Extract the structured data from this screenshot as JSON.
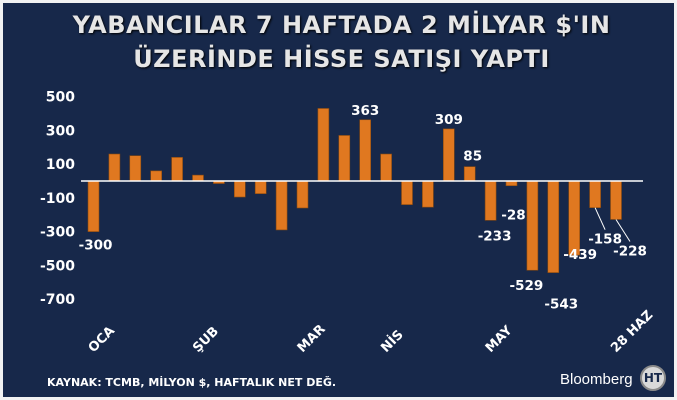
{
  "title_line1": "YABANCILAR 7 HAFTADA 2 MİLYAR $'IN",
  "title_line2": "ÜZERİNDE HİSSE SATIŞI YAPTI",
  "source": "KAYNAK: TCMB, MİLYON $, HAFTALIK NET DEĞ.",
  "brand": "Bloomberg",
  "logo_text": "HT",
  "colors": {
    "background": "#17284a",
    "bar": "#e07820",
    "text": "#ffffff"
  },
  "chart_data": {
    "type": "bar",
    "title": "YABANCILAR 7 HAFTADA 2 MİLYAR $'IN ÜZERİNDE HİSSE SATIŞI YAPTI",
    "xlabel": "",
    "ylabel": "",
    "ylim": [
      -700,
      500
    ],
    "yticks": [
      500,
      300,
      100,
      -100,
      -300,
      -500,
      -700
    ],
    "ytick_labels": [
      "500",
      "300",
      "100",
      "-100",
      "-300",
      "-500",
      "-700"
    ],
    "values": [
      -300,
      160,
      150,
      60,
      140,
      35,
      -15,
      -95,
      -75,
      -290,
      -160,
      430,
      270,
      363,
      160,
      -140,
      -155,
      309,
      85,
      -233,
      -28,
      -529,
      -543,
      -439,
      -158,
      -228
    ],
    "x_labels": [
      {
        "index": 0,
        "text": "OCA"
      },
      {
        "index": 5,
        "text": "ŞUB"
      },
      {
        "index": 10,
        "text": "MAR"
      },
      {
        "index": 14,
        "text": "NİS"
      },
      {
        "index": 19,
        "text": "MAY"
      },
      {
        "index": 25,
        "text": "28 HAZ"
      }
    ],
    "data_labels": [
      {
        "index": 0,
        "text": "-300"
      },
      {
        "index": 13,
        "text": "363"
      },
      {
        "index": 17,
        "text": "309"
      },
      {
        "index": 18,
        "text": "85"
      },
      {
        "index": 19,
        "text": "-233"
      },
      {
        "index": 20,
        "text": "-28"
      },
      {
        "index": 21,
        "text": "-529"
      },
      {
        "index": 22,
        "text": "-543"
      },
      {
        "index": 23,
        "text": "-439"
      },
      {
        "index": 24,
        "text": "-158"
      },
      {
        "index": 25,
        "text": "-228"
      }
    ],
    "grid": false,
    "legend": "none"
  }
}
